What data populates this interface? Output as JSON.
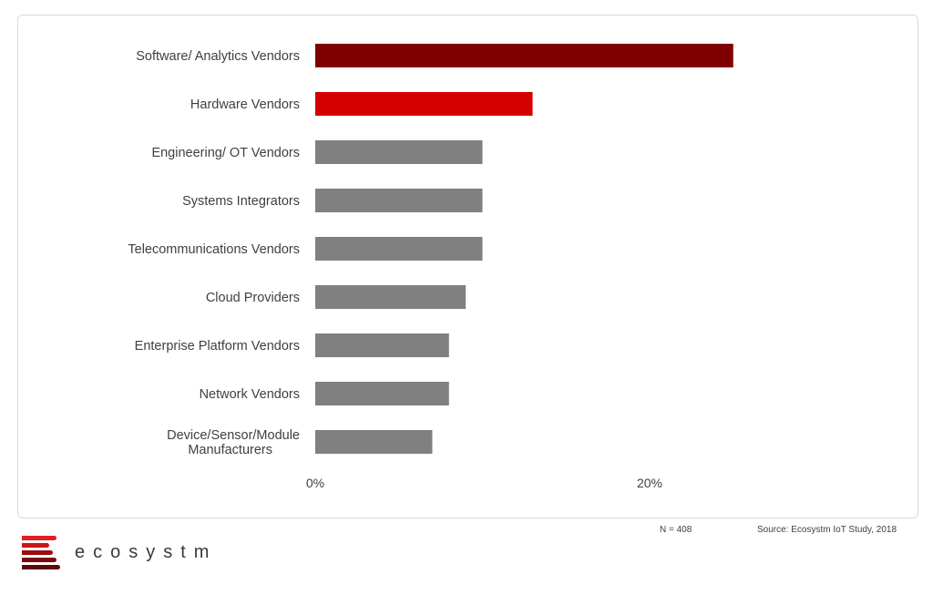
{
  "chart_data": {
    "type": "bar",
    "orientation": "horizontal",
    "categories": [
      "Software/ Analytics Vendors",
      "Hardware Vendors",
      "Engineering/ OT Vendors",
      "Systems Integrators",
      "Telecommunications Vendors",
      "Cloud Providers",
      "Enterprise Platform Vendors",
      "Network Vendors",
      "Device/Sensor/Module Manufacturers"
    ],
    "category_lines": [
      [
        "Software/ Analytics Vendors"
      ],
      [
        "Hardware Vendors"
      ],
      [
        "Engineering/ OT Vendors"
      ],
      [
        "Systems Integrators"
      ],
      [
        "Telecommunications Vendors"
      ],
      [
        "Cloud Providers"
      ],
      [
        "Enterprise Platform Vendors"
      ],
      [
        "Network Vendors"
      ],
      [
        "Device/Sensor/Module",
        "Manufacturers"
      ]
    ],
    "values": [
      25,
      13,
      10,
      10,
      10,
      9,
      8,
      8,
      7
    ],
    "bar_colors": [
      "#7f0000",
      "#d40000",
      "#808080",
      "#808080",
      "#808080",
      "#808080",
      "#808080",
      "#808080",
      "#808080"
    ],
    "xticks": [
      {
        "value": 0,
        "label": "0%"
      },
      {
        "value": 20,
        "label": "20%"
      }
    ],
    "xlim": [
      0,
      30
    ],
    "grid": false
  },
  "footer": {
    "n_label": "N = 408",
    "source": "Source: Ecosystm IoT Study, 2018"
  },
  "logo": {
    "brand": "ecosystm",
    "colors": [
      "#e31e24",
      "#c4161c",
      "#9e0b0f",
      "#7a0a0d",
      "#5e0a0c"
    ]
  }
}
